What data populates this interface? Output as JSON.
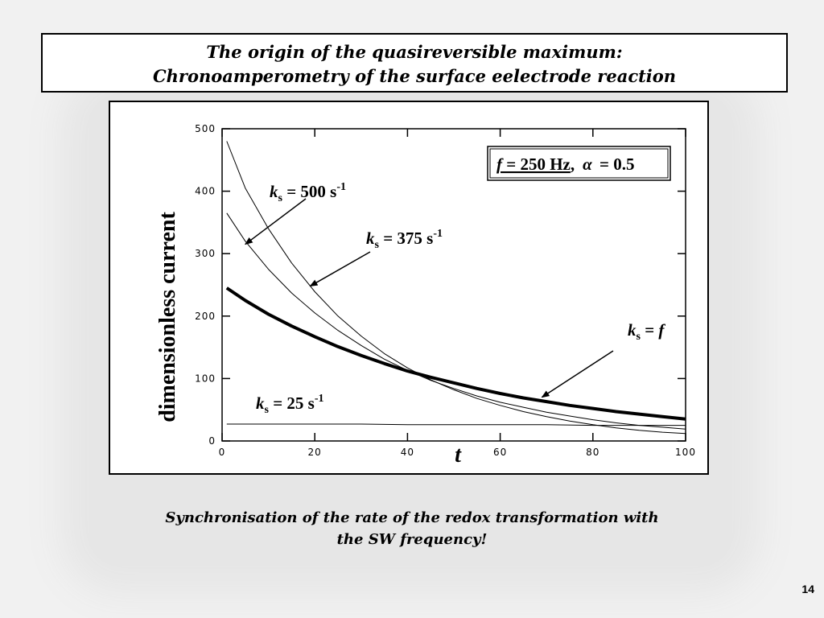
{
  "slide": {
    "title_line1": "The origin of the quasireversible maximum:",
    "title_line2": "Chronoamperometry of the surface eelectrode reaction",
    "caption_line1": "Synchronisation of the rate of the redox transformation with",
    "caption_line2": "the SW frequency!",
    "page_number": "14"
  },
  "chart_data": {
    "type": "line",
    "xlabel": "t",
    "ylabel": "dimensionless current",
    "xlim": [
      0,
      100
    ],
    "ylim": [
      0,
      500
    ],
    "xticks": [
      "0",
      "20",
      "40",
      "60",
      "80",
      "100"
    ],
    "yticks": [
      "0",
      "100",
      "200",
      "300",
      "400",
      "500"
    ],
    "grid": false,
    "legend": "none",
    "info_box": {
      "f_text": "f",
      "eq250_text": " = 250 Hz",
      "comma_text": ",",
      "alpha_text": "α",
      "eq05_text": " = 0.5"
    },
    "series": [
      {
        "name": "ks = 500 s-1",
        "line_width": "thin",
        "x": [
          1,
          5,
          10,
          15,
          20,
          25,
          30,
          35,
          40,
          45,
          50,
          55,
          60,
          65,
          70,
          75,
          80,
          85,
          90,
          95,
          100
        ],
        "y": [
          480,
          405,
          340,
          285,
          239,
          200,
          168,
          140,
          117,
          98,
          82,
          68,
          57,
          47,
          39,
          32,
          26,
          21,
          17,
          14,
          12
        ]
      },
      {
        "name": "ks = 375 s-1",
        "line_width": "thin",
        "x": [
          1,
          5,
          10,
          15,
          20,
          25,
          30,
          35,
          40,
          45,
          50,
          55,
          60,
          65,
          70,
          75,
          80,
          85,
          90,
          95,
          100
        ],
        "y": [
          365,
          320,
          275,
          237,
          205,
          177,
          153,
          131,
          113,
          97,
          84,
          72,
          62,
          54,
          46,
          40,
          34,
          29,
          25,
          22,
          19
        ]
      },
      {
        "name": "ks = f",
        "line_width": "thick",
        "x": [
          1,
          5,
          10,
          15,
          20,
          25,
          30,
          35,
          40,
          45,
          50,
          55,
          60,
          65,
          70,
          75,
          80,
          85,
          90,
          95,
          100
        ],
        "y": [
          245,
          225,
          203,
          184,
          167,
          151,
          137,
          124,
          112,
          102,
          93,
          84,
          76,
          69,
          63,
          57,
          52,
          47,
          43,
          39,
          35
        ]
      },
      {
        "name": "ks = 25 s-1",
        "line_width": "thin",
        "x": [
          1,
          10,
          20,
          30,
          40,
          50,
          60,
          70,
          80,
          90,
          100
        ],
        "y": [
          27,
          27,
          27,
          27,
          26,
          26,
          26,
          26,
          25,
          25,
          25
        ]
      }
    ],
    "annotations": [
      {
        "k": "k",
        "sub": "s",
        "rest": " = 500 s",
        "sup": "-1",
        "points_to_x": 5,
        "points_to_y": 315
      },
      {
        "k": "k",
        "sub": "s",
        "rest": " = 375 s",
        "sup": "-1",
        "points_to_x": 19,
        "points_to_y": 248
      },
      {
        "k": "k",
        "sub": "s",
        "rest": " = ",
        "fitalic": "f",
        "points_to_x": 69,
        "points_to_y": 70
      },
      {
        "k": "k",
        "sub": "s",
        "rest": " = 25 s",
        "sup": "-1"
      }
    ]
  }
}
